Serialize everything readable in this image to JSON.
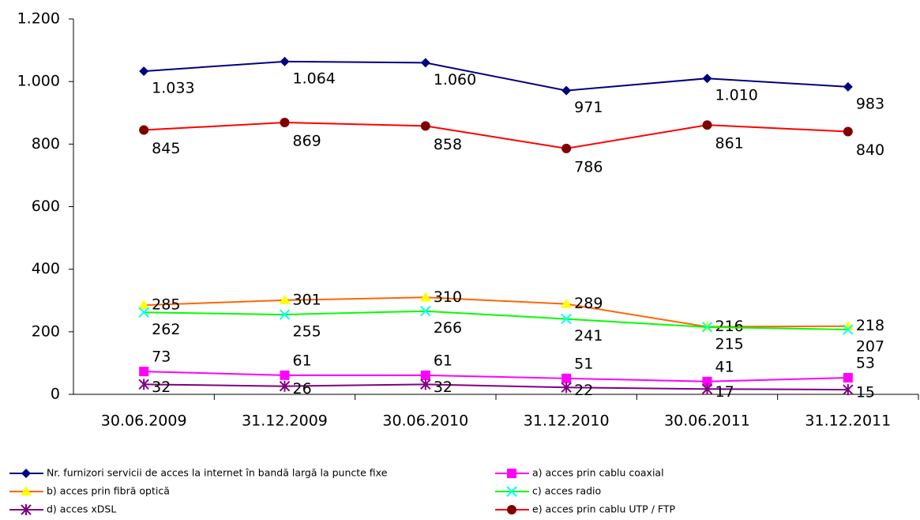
{
  "chart_data": {
    "type": "line",
    "categories": [
      "30.06.2009",
      "31.12.2009",
      "30.06.2010",
      "31.12.2010",
      "30.06.2011",
      "31.12.2011"
    ],
    "ylim": [
      0,
      1200
    ],
    "yticks": [
      0,
      200,
      400,
      600,
      800,
      {
        "value": 1000,
        "label": "1.000"
      },
      {
        "value": 1200,
        "label": "1.200"
      }
    ],
    "grid": false,
    "legend": "bottom",
    "series": [
      {
        "name": "Nr. furnizori servicii de acces la internet în bandă largă la puncte fixe",
        "color": "#000080",
        "marker": "diamond",
        "marker_color": "#000080",
        "values": [
          1033,
          1064,
          1060,
          971,
          1010,
          983
        ],
        "value_labels": [
          "1.033",
          "1.064",
          "1.060",
          "971",
          "1.010",
          "983"
        ]
      },
      {
        "name": "a) acces prin cablu coaxial",
        "color": "#ff00ff",
        "marker": "square",
        "marker_color": "#ff00ff",
        "values": [
          73,
          61,
          61,
          51,
          41,
          53
        ]
      },
      {
        "name": "b) acces prin fibră optică",
        "color": "#ff6600",
        "marker": "triangle",
        "marker_color": "#ffff00",
        "values": [
          285,
          301,
          310,
          289,
          216,
          218
        ]
      },
      {
        "name": "c) acces  radio",
        "color": "#00ff00",
        "marker": "x",
        "marker_color": "#00ffff",
        "values": [
          262,
          255,
          266,
          241,
          215,
          207
        ]
      },
      {
        "name": "d) acces xDSL",
        "color": "#800080",
        "marker": "star",
        "marker_color": "#800080",
        "values": [
          32,
          26,
          32,
          22,
          17,
          15
        ]
      },
      {
        "name": "e) acces prin cablu UTP / FTP",
        "color": "#ff0000",
        "marker": "circle",
        "marker_color": "#800000",
        "values": [
          845,
          869,
          858,
          786,
          861,
          840
        ]
      }
    ]
  }
}
